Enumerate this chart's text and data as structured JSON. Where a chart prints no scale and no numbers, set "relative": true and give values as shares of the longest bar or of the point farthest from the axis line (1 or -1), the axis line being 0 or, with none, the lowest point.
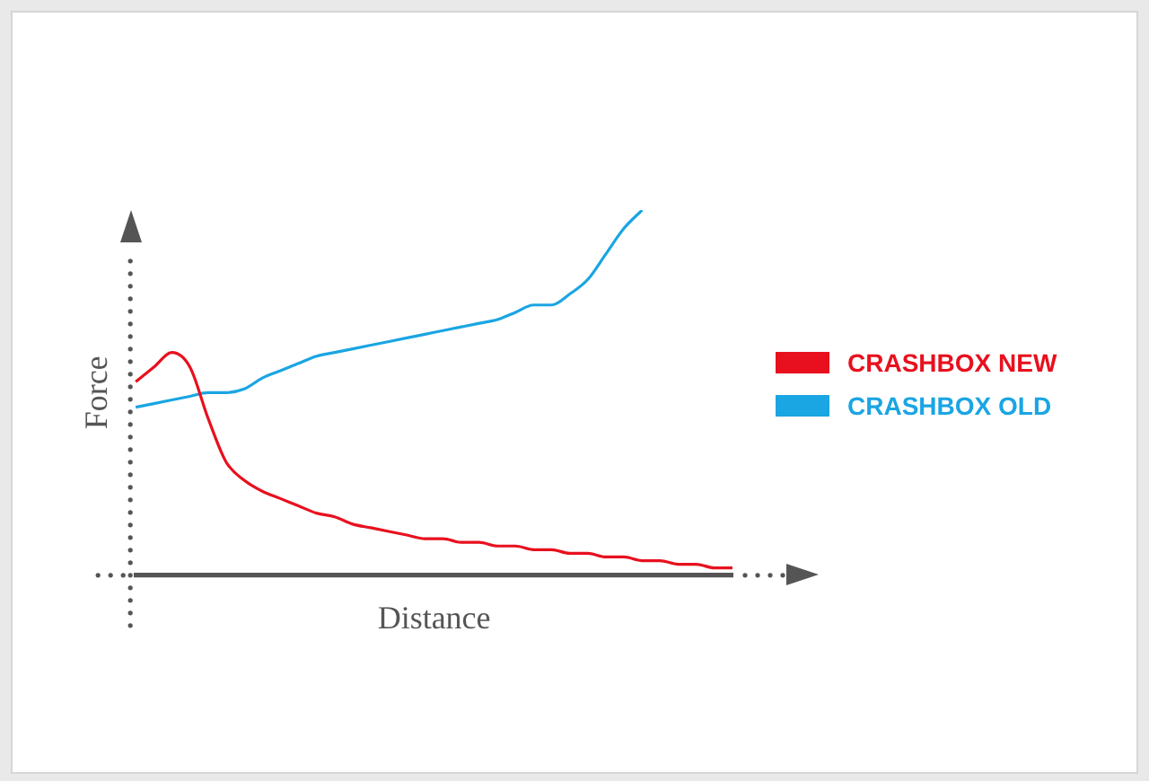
{
  "chart_data": {
    "type": "line",
    "xlabel": "Distance",
    "ylabel": "Force",
    "relative": true,
    "legend": "right",
    "grid": false,
    "marker": "none",
    "line_style": "solid",
    "categories": [
      null,
      null,
      null,
      null,
      null,
      null,
      null,
      null,
      null,
      null,
      null,
      null,
      null,
      null,
      null,
      null,
      null,
      null,
      null,
      null,
      null,
      null,
      null,
      null,
      null,
      null,
      null,
      null,
      null,
      null,
      null,
      null,
      null,
      null
    ],
    "series": [
      {
        "name": "CRASHBOX NEW",
        "color": "#e8101e",
        "values": [
          0.53,
          0.57,
          0.61,
          0.57,
          0.43,
          0.31,
          0.26,
          0.23,
          0.21,
          0.19,
          0.17,
          0.16,
          0.14,
          0.13,
          0.12,
          0.11,
          0.1,
          0.1,
          0.09,
          0.09,
          0.08,
          0.08,
          0.07,
          0.07,
          0.06,
          0.06,
          0.05,
          0.05,
          0.04,
          0.04,
          0.03,
          0.03,
          0.02,
          0.02
        ]
      },
      {
        "name": "CRASHBOX OLD",
        "color": "#1aa5e3",
        "values": [
          0.46,
          0.47,
          0.48,
          0.49,
          0.5,
          0.5,
          0.51,
          0.54,
          0.56,
          0.58,
          0.6,
          0.61,
          0.62,
          0.63,
          0.64,
          0.65,
          0.66,
          0.67,
          0.68,
          0.69,
          0.7,
          0.72,
          0.74,
          0.74,
          0.77,
          0.81,
          0.88,
          0.95,
          1.0,
          null,
          null,
          null,
          null,
          null
        ]
      }
    ]
  }
}
